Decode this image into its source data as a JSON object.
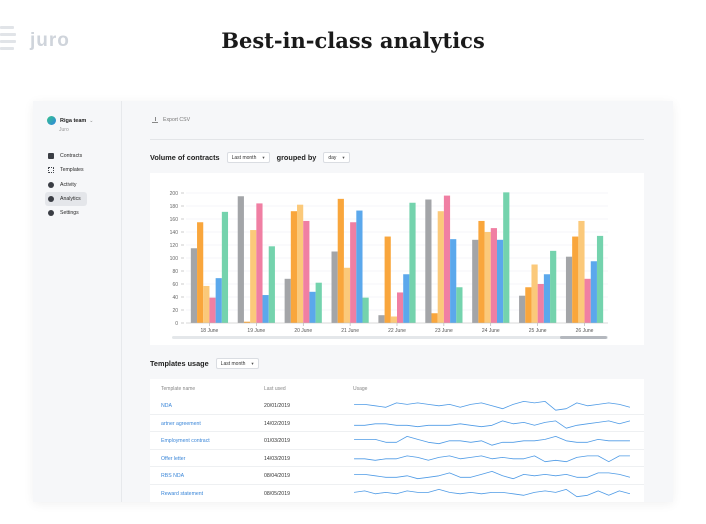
{
  "header": {
    "brand": "juro",
    "headline": "Best-in-class analytics"
  },
  "sidebar": {
    "team_name": "Riga team",
    "team_sub": "Juro",
    "items": [
      {
        "label": "Contracts",
        "icon": "contracts-icon",
        "active": false
      },
      {
        "label": "Templates",
        "icon": "templates-icon",
        "active": false
      },
      {
        "label": "Activity",
        "icon": "activity-icon",
        "active": false
      },
      {
        "label": "Analytics",
        "icon": "analytics-icon",
        "active": true
      },
      {
        "label": "Settings",
        "icon": "settings-icon",
        "active": false
      }
    ]
  },
  "toolbar": {
    "export_label": "Export CSV"
  },
  "volume": {
    "title": "Volume of contracts",
    "period": "Last month",
    "grouped_label": "grouped by",
    "group": "day"
  },
  "chart_data": {
    "type": "bar",
    "categories": [
      "18 June",
      "19 June",
      "20 June",
      "21 June",
      "22 June",
      "23 June",
      "24 June",
      "25 June",
      "26 June"
    ],
    "y_ticks": [
      0,
      20,
      40,
      60,
      80,
      100,
      120,
      140,
      160,
      180,
      200
    ],
    "ylim": [
      0,
      200
    ],
    "grid": true,
    "colors": [
      "#a3a5a8",
      "#f9a63c",
      "#fbc97a",
      "#f07fa3",
      "#5ba8ec",
      "#74d3ad"
    ],
    "series": [
      {
        "values": [
          115,
          195,
          68,
          110,
          12,
          190,
          128,
          42,
          102
        ]
      },
      {
        "values": [
          155,
          2,
          172,
          191,
          133,
          15,
          157,
          55,
          133
        ]
      },
      {
        "values": [
          57,
          143,
          182,
          85,
          10,
          172,
          140,
          90,
          157
        ]
      },
      {
        "values": [
          39,
          184,
          157,
          155,
          47,
          196,
          146,
          60,
          68
        ]
      },
      {
        "values": [
          69,
          43,
          48,
          173,
          75,
          129,
          128,
          75,
          95
        ]
      },
      {
        "values": [
          171,
          118,
          62,
          39,
          185,
          55,
          201,
          111,
          134
        ]
      }
    ]
  },
  "templates": {
    "title": "Templates usage",
    "period": "Last month",
    "columns": [
      "Template name",
      "Last used",
      "Usage"
    ],
    "rows": [
      {
        "name": "NDA",
        "date": "20/01/2019",
        "usage": [
          5,
          5,
          4,
          3,
          6,
          5,
          6,
          5,
          4,
          5,
          3,
          5,
          6,
          4,
          2,
          5,
          7,
          6,
          7,
          1,
          2,
          6,
          4,
          5,
          6,
          5,
          3
        ]
      },
      {
        "name": "artner agreement",
        "date": "14/02/2019",
        "usage": [
          3,
          3,
          4,
          4,
          3,
          3,
          2,
          3,
          3,
          3,
          4,
          3,
          2,
          3,
          6,
          4,
          5,
          3,
          5,
          6,
          1,
          3,
          4,
          5,
          6,
          4,
          6
        ]
      },
      {
        "name": "Employment contract",
        "date": "01/03/2019",
        "usage": [
          5,
          5,
          5,
          3,
          3,
          7,
          5,
          3,
          2,
          4,
          4,
          3,
          4,
          1,
          3,
          3,
          4,
          4,
          5,
          7,
          4,
          3,
          3,
          5,
          4,
          4,
          4
        ]
      },
      {
        "name": "Offer letter",
        "date": "14/03/2019",
        "usage": [
          4,
          4,
          3,
          4,
          4,
          6,
          5,
          3,
          5,
          6,
          4,
          5,
          6,
          4,
          5,
          4,
          4,
          6,
          2,
          3,
          2,
          5,
          6,
          6,
          2,
          6,
          6
        ]
      },
      {
        "name": "RBS NDA",
        "date": "08/04/2019",
        "usage": [
          5,
          5,
          4,
          3,
          3,
          4,
          2,
          3,
          4,
          6,
          3,
          3,
          5,
          7,
          4,
          2,
          5,
          4,
          5,
          4,
          5,
          3,
          3,
          6,
          6,
          5,
          3
        ]
      },
      {
        "name": "Reward statement",
        "date": "08/05/2019",
        "usage": [
          5,
          6,
          4,
          5,
          4,
          6,
          5,
          5,
          7,
          5,
          4,
          5,
          4,
          5,
          5,
          4,
          3,
          5,
          6,
          5,
          7,
          2,
          3,
          6,
          3,
          6,
          4
        ]
      }
    ]
  }
}
